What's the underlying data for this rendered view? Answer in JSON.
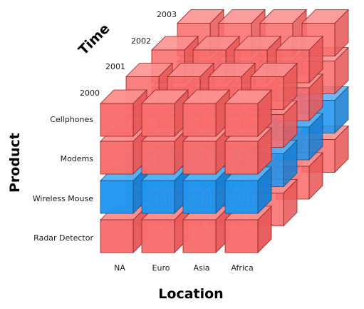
{
  "axes": {
    "time_title": "Time",
    "product_title": "Product",
    "location_title": "Location"
  },
  "time_labels": [
    "2000",
    "2001",
    "2002",
    "2003"
  ],
  "product_labels": [
    "Cellphones",
    "Modems",
    "Wireless Mouse",
    "Radar Detector"
  ],
  "location_labels": [
    "NA",
    "Euro",
    "Asia",
    "Africa"
  ],
  "highlighted_product": "Wireless Mouse",
  "colors": {
    "cell": "#f96d6d",
    "cell_side": "#e85a5a",
    "cell_top": "#fb8f8f",
    "cell_edge": "#8a2424",
    "highlight": "#2196f0",
    "highlight_side": "#1a7fd4",
    "highlight_top": "#55b2f7",
    "highlight_edge": "#1a4f80"
  }
}
